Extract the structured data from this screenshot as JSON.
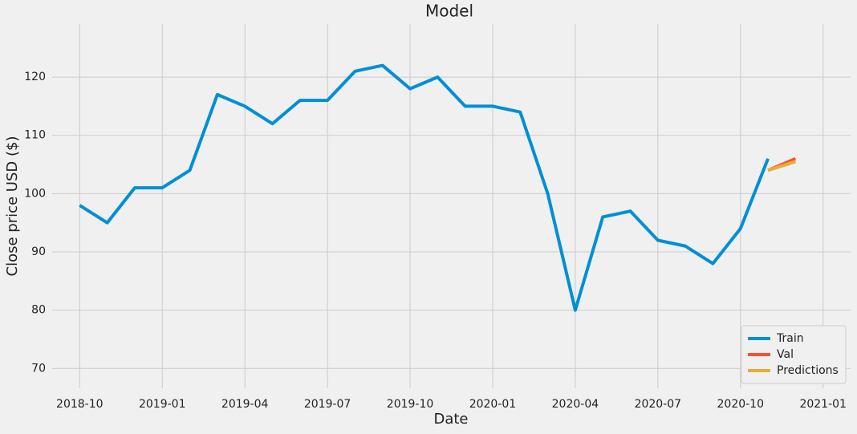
{
  "chart_data": {
    "type": "line",
    "title": "Model",
    "x_label": "Date",
    "y_label": "Close price USD ($)",
    "x": [
      "2018-10",
      "2018-11",
      "2018-12",
      "2019-01",
      "2019-02",
      "2019-03",
      "2019-04",
      "2019-05",
      "2019-06",
      "2019-07",
      "2019-08",
      "2019-09",
      "2019-10",
      "2019-11",
      "2019-12",
      "2020-01",
      "2020-02",
      "2020-03",
      "2020-04",
      "2020-05",
      "2020-06",
      "2020-07",
      "2020-08",
      "2020-09",
      "2020-10",
      "2020-11",
      "2020-12"
    ],
    "series": [
      {
        "name": "Train",
        "color": "#008fd5",
        "values": [
          98,
          95,
          101,
          101,
          104,
          117,
          115,
          112,
          116,
          116,
          121,
          122,
          118,
          120,
          115,
          115,
          114,
          100,
          80,
          96,
          97,
          92,
          91,
          88,
          94,
          106,
          null
        ]
      },
      {
        "name": "Val",
        "color": "#fc4f30",
        "values": [
          null,
          null,
          null,
          null,
          null,
          null,
          null,
          null,
          null,
          null,
          null,
          null,
          null,
          null,
          null,
          null,
          null,
          null,
          null,
          null,
          null,
          null,
          null,
          null,
          null,
          104,
          106
        ]
      },
      {
        "name": "Predictions",
        "color": "#e5ae38",
        "values": [
          null,
          null,
          null,
          null,
          null,
          null,
          null,
          null,
          null,
          null,
          null,
          null,
          null,
          null,
          null,
          null,
          null,
          null,
          null,
          null,
          null,
          null,
          null,
          null,
          null,
          104,
          105.5
        ]
      }
    ],
    "xlim": [
      "2018-09",
      "2021-02"
    ],
    "xticks": [
      "2018-10",
      "2019-01",
      "2019-04",
      "2019-07",
      "2019-10",
      "2020-01",
      "2020-04",
      "2020-07",
      "2020-10",
      "2021-01"
    ],
    "ylim": [
      66.6,
      129.1
    ],
    "yticks": [
      70,
      80,
      90,
      100,
      110,
      120
    ],
    "grid": true,
    "legend": "lower right"
  }
}
